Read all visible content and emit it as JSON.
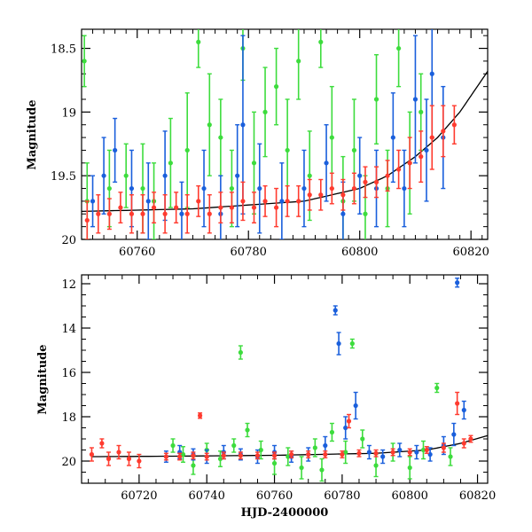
{
  "chart_data": [
    {
      "type": "scatter",
      "panel": "top",
      "xlabel": "",
      "ylabel": "Magnitude",
      "xlim": [
        60750,
        60823
      ],
      "ylim": [
        20.0,
        18.35
      ],
      "y_inverted": true,
      "x_ticks": [
        60760,
        60780,
        60800,
        60820
      ],
      "x_tick_labels": [
        "60760",
        "60780",
        "60800",
        "60820"
      ],
      "y_ticks": [
        18.5,
        19.0,
        19.5,
        20.0
      ],
      "y_tick_labels": [
        "18.5",
        "19",
        "19.5",
        "20"
      ],
      "colors": {
        "green": "#3ddc3d",
        "blue": "#1a5fdc",
        "red": "#ff3b2f",
        "model": "#000000"
      },
      "model_curve": {
        "x": [
          60750,
          60770,
          60790,
          60800,
          60805,
          60810,
          60814,
          60818,
          60823
        ],
        "y": [
          19.78,
          19.76,
          19.7,
          19.6,
          19.5,
          19.35,
          19.2,
          19.0,
          18.68
        ]
      },
      "series": [
        {
          "color_key": "green",
          "x": [
            60750.5,
            60751,
            60755,
            60758,
            60761,
            60763,
            60766,
            60769,
            60771,
            60773,
            60775,
            60777,
            60779,
            60781,
            60783,
            60785,
            60787,
            60789,
            60791,
            60793,
            60795,
            60797,
            60799,
            60801,
            60803,
            60805,
            60807,
            60809,
            60811
          ],
          "y": [
            18.6,
            19.7,
            19.6,
            19.5,
            19.6,
            19.7,
            19.4,
            19.3,
            18.45,
            19.1,
            19.2,
            19.6,
            18.5,
            19.4,
            19.0,
            18.8,
            19.3,
            18.6,
            19.5,
            18.45,
            19.2,
            19.7,
            19.3,
            19.8,
            18.9,
            19.6,
            18.5,
            19.4,
            19.0
          ],
          "err": [
            0.2,
            0.3,
            0.3,
            0.25,
            0.35,
            0.3,
            0.35,
            0.45,
            0.2,
            0.4,
            0.3,
            0.3,
            0.25,
            0.4,
            0.35,
            0.3,
            0.4,
            0.3,
            0.35,
            0.2,
            0.4,
            0.35,
            0.4,
            0.3,
            0.35,
            0.3,
            0.3,
            0.4,
            0.3
          ]
        },
        {
          "color_key": "blue",
          "x": [
            60752,
            60754,
            60756,
            60759,
            60762,
            60765,
            60768,
            60772,
            60775,
            60778,
            60779,
            60782,
            60786,
            60790,
            60794,
            60797,
            60800,
            60803,
            60806,
            60808,
            60810,
            60812,
            60813,
            60815
          ],
          "y": [
            19.7,
            19.5,
            19.3,
            19.6,
            19.7,
            19.5,
            19.8,
            19.6,
            19.8,
            19.5,
            19.1,
            19.6,
            19.7,
            19.6,
            19.4,
            19.8,
            19.5,
            19.6,
            19.2,
            19.6,
            18.9,
            19.3,
            18.7,
            19.2
          ],
          "err": [
            0.2,
            0.3,
            0.25,
            0.3,
            0.3,
            0.35,
            0.25,
            0.3,
            0.3,
            0.4,
            0.7,
            0.35,
            0.3,
            0.3,
            0.3,
            0.25,
            0.3,
            0.3,
            0.35,
            0.3,
            0.5,
            0.4,
            0.5,
            0.4
          ]
        },
        {
          "color_key": "red",
          "x": [
            60751,
            60753,
            60755,
            60757,
            60759,
            60761,
            60763,
            60765,
            60767,
            60769,
            60771,
            60773,
            60775,
            60777,
            60779,
            60781,
            60783,
            60785,
            60787,
            60789,
            60791,
            60793,
            60795,
            60797,
            60799,
            60801,
            60803,
            60805,
            60807,
            60809,
            60811,
            60813,
            60815,
            60817
          ],
          "y": [
            19.85,
            19.8,
            19.8,
            19.75,
            19.8,
            19.8,
            19.75,
            19.8,
            19.75,
            19.8,
            19.7,
            19.8,
            19.75,
            19.75,
            19.7,
            19.75,
            19.7,
            19.75,
            19.7,
            19.7,
            19.65,
            19.65,
            19.6,
            19.65,
            19.6,
            19.55,
            19.55,
            19.5,
            19.45,
            19.4,
            19.35,
            19.2,
            19.15,
            19.1
          ],
          "err": [
            0.15,
            0.15,
            0.12,
            0.12,
            0.15,
            0.15,
            0.12,
            0.15,
            0.12,
            0.15,
            0.12,
            0.15,
            0.12,
            0.12,
            0.15,
            0.12,
            0.12,
            0.15,
            0.12,
            0.12,
            0.12,
            0.12,
            0.12,
            0.12,
            0.12,
            0.12,
            0.12,
            0.12,
            0.15,
            0.2,
            0.2,
            0.25,
            0.2,
            0.15
          ]
        }
      ]
    },
    {
      "type": "scatter",
      "panel": "bottom",
      "xlabel": "HJD-2400000",
      "ylabel": "Magnitude",
      "xlim": [
        60703,
        60823
      ],
      "ylim": [
        21.0,
        11.6
      ],
      "y_inverted": true,
      "x_ticks": [
        60720,
        60740,
        60760,
        60780,
        60800,
        60820
      ],
      "x_tick_labels": [
        "60720",
        "60740",
        "60760",
        "60780",
        "60800",
        "60820"
      ],
      "y_ticks": [
        12,
        14,
        16,
        18,
        20
      ],
      "y_tick_labels": [
        "12",
        "14",
        "16",
        "18",
        "20"
      ],
      "colors": {
        "green": "#3ddc3d",
        "blue": "#1a5fdc",
        "red": "#ff3b2f",
        "model": "#000000"
      },
      "model_curve": {
        "x": [
          60706,
          60730,
          60760,
          60790,
          60805,
          60815,
          60823
        ],
        "y": [
          19.8,
          19.78,
          19.74,
          19.65,
          19.5,
          19.2,
          18.85
        ]
      },
      "series": [
        {
          "color_key": "green",
          "x": [
            60730,
            60733,
            60736,
            60740,
            60744,
            60748,
            60750,
            60752,
            60756,
            60760,
            60764,
            60768,
            60772,
            60774,
            60777,
            60781,
            60783,
            60786,
            60790,
            60795,
            60800,
            60804,
            60808,
            60812
          ],
          "y": [
            19.3,
            19.7,
            20.2,
            19.5,
            19.9,
            19.3,
            15.1,
            18.6,
            19.5,
            20.1,
            19.8,
            20.3,
            19.4,
            20.4,
            18.7,
            19.6,
            14.7,
            19.0,
            20.2,
            19.6,
            20.3,
            19.5,
            16.7,
            19.8
          ],
          "err": [
            0.3,
            0.35,
            0.4,
            0.3,
            0.35,
            0.3,
            0.3,
            0.3,
            0.4,
            0.5,
            0.4,
            0.5,
            0.4,
            0.5,
            0.4,
            0.5,
            0.2,
            0.4,
            0.5,
            0.4,
            0.5,
            0.4,
            0.2,
            0.4
          ]
        },
        {
          "color_key": "blue",
          "x": [
            60728,
            60732,
            60736,
            60740,
            60745,
            60750,
            60755,
            60760,
            60765,
            60770,
            60775,
            60778,
            60779,
            60781,
            60784,
            60788,
            60792,
            60797,
            60802,
            60806,
            60810,
            60813,
            60814,
            60816
          ],
          "y": [
            19.8,
            19.6,
            19.7,
            19.8,
            19.6,
            19.7,
            19.8,
            19.6,
            19.8,
            19.7,
            19.3,
            13.2,
            14.7,
            18.5,
            17.5,
            19.6,
            19.8,
            19.5,
            19.6,
            19.7,
            19.3,
            18.8,
            11.95,
            17.7
          ],
          "err": [
            0.25,
            0.3,
            0.25,
            0.3,
            0.3,
            0.25,
            0.3,
            0.3,
            0.25,
            0.3,
            0.4,
            0.2,
            0.5,
            0.5,
            0.6,
            0.3,
            0.3,
            0.3,
            0.3,
            0.3,
            0.4,
            0.5,
            0.2,
            0.4
          ]
        },
        {
          "color_key": "red",
          "x": [
            60706,
            60709,
            60711,
            60714,
            60717,
            60720,
            60728,
            60732,
            60736,
            60738,
            60740,
            60745,
            60750,
            60755,
            60760,
            60765,
            60770,
            60775,
            60780,
            60782,
            60785,
            60790,
            60795,
            60800,
            60805,
            60810,
            60814,
            60816,
            60818
          ],
          "y": [
            19.7,
            19.2,
            19.9,
            19.6,
            19.9,
            20.0,
            19.8,
            19.8,
            19.75,
            17.95,
            19.8,
            19.75,
            19.75,
            19.75,
            19.75,
            19.7,
            19.7,
            19.7,
            19.7,
            18.2,
            19.65,
            19.65,
            19.6,
            19.6,
            19.5,
            19.4,
            17.4,
            19.2,
            19.0
          ],
          "err": [
            0.3,
            0.2,
            0.3,
            0.3,
            0.3,
            0.3,
            0.15,
            0.15,
            0.15,
            0.12,
            0.15,
            0.15,
            0.15,
            0.15,
            0.15,
            0.15,
            0.15,
            0.15,
            0.15,
            0.3,
            0.15,
            0.15,
            0.15,
            0.15,
            0.15,
            0.2,
            0.5,
            0.2,
            0.15
          ]
        }
      ]
    }
  ]
}
